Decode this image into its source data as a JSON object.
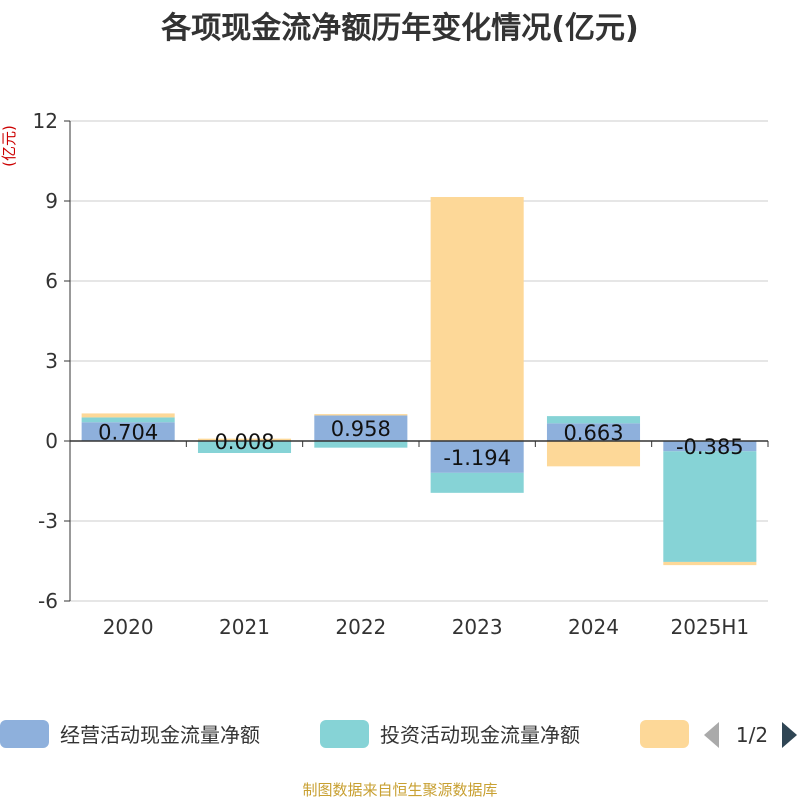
{
  "chart_data": {
    "type": "bar",
    "stacked": true,
    "title": "各项现金流净额历年变化情况(亿元)",
    "ylabel": "(亿元)",
    "xlabel": "",
    "categories": [
      "2020",
      "2021",
      "2022",
      "2023",
      "2024",
      "2025H1"
    ],
    "ylim": [
      -6,
      12
    ],
    "yticks": [
      12,
      9,
      6,
      3,
      0,
      -3,
      -6
    ],
    "grid": true,
    "series": [
      {
        "name": "经营活动现金流量净额",
        "color": "#8eb0dc",
        "values": [
          0.704,
          0.008,
          0.958,
          -1.194,
          0.663,
          -0.385
        ]
      },
      {
        "name": "投资活动现金流量净额",
        "color": "#86d3d6",
        "values": [
          0.18,
          -0.45,
          -0.25,
          -0.75,
          0.27,
          -4.15
        ]
      },
      {
        "name": "",
        "color": "#fdd898",
        "values": [
          0.15,
          0.08,
          0.05,
          9.15,
          -0.95,
          -0.12
        ]
      }
    ],
    "data_labels": [
      "0.704",
      "0.008",
      "0.958",
      "-1.194",
      "0.663",
      "-0.385"
    ],
    "legend": {
      "position": "bottom",
      "page": "1/2"
    },
    "source": "制图数据来自恒生聚源数据库"
  }
}
